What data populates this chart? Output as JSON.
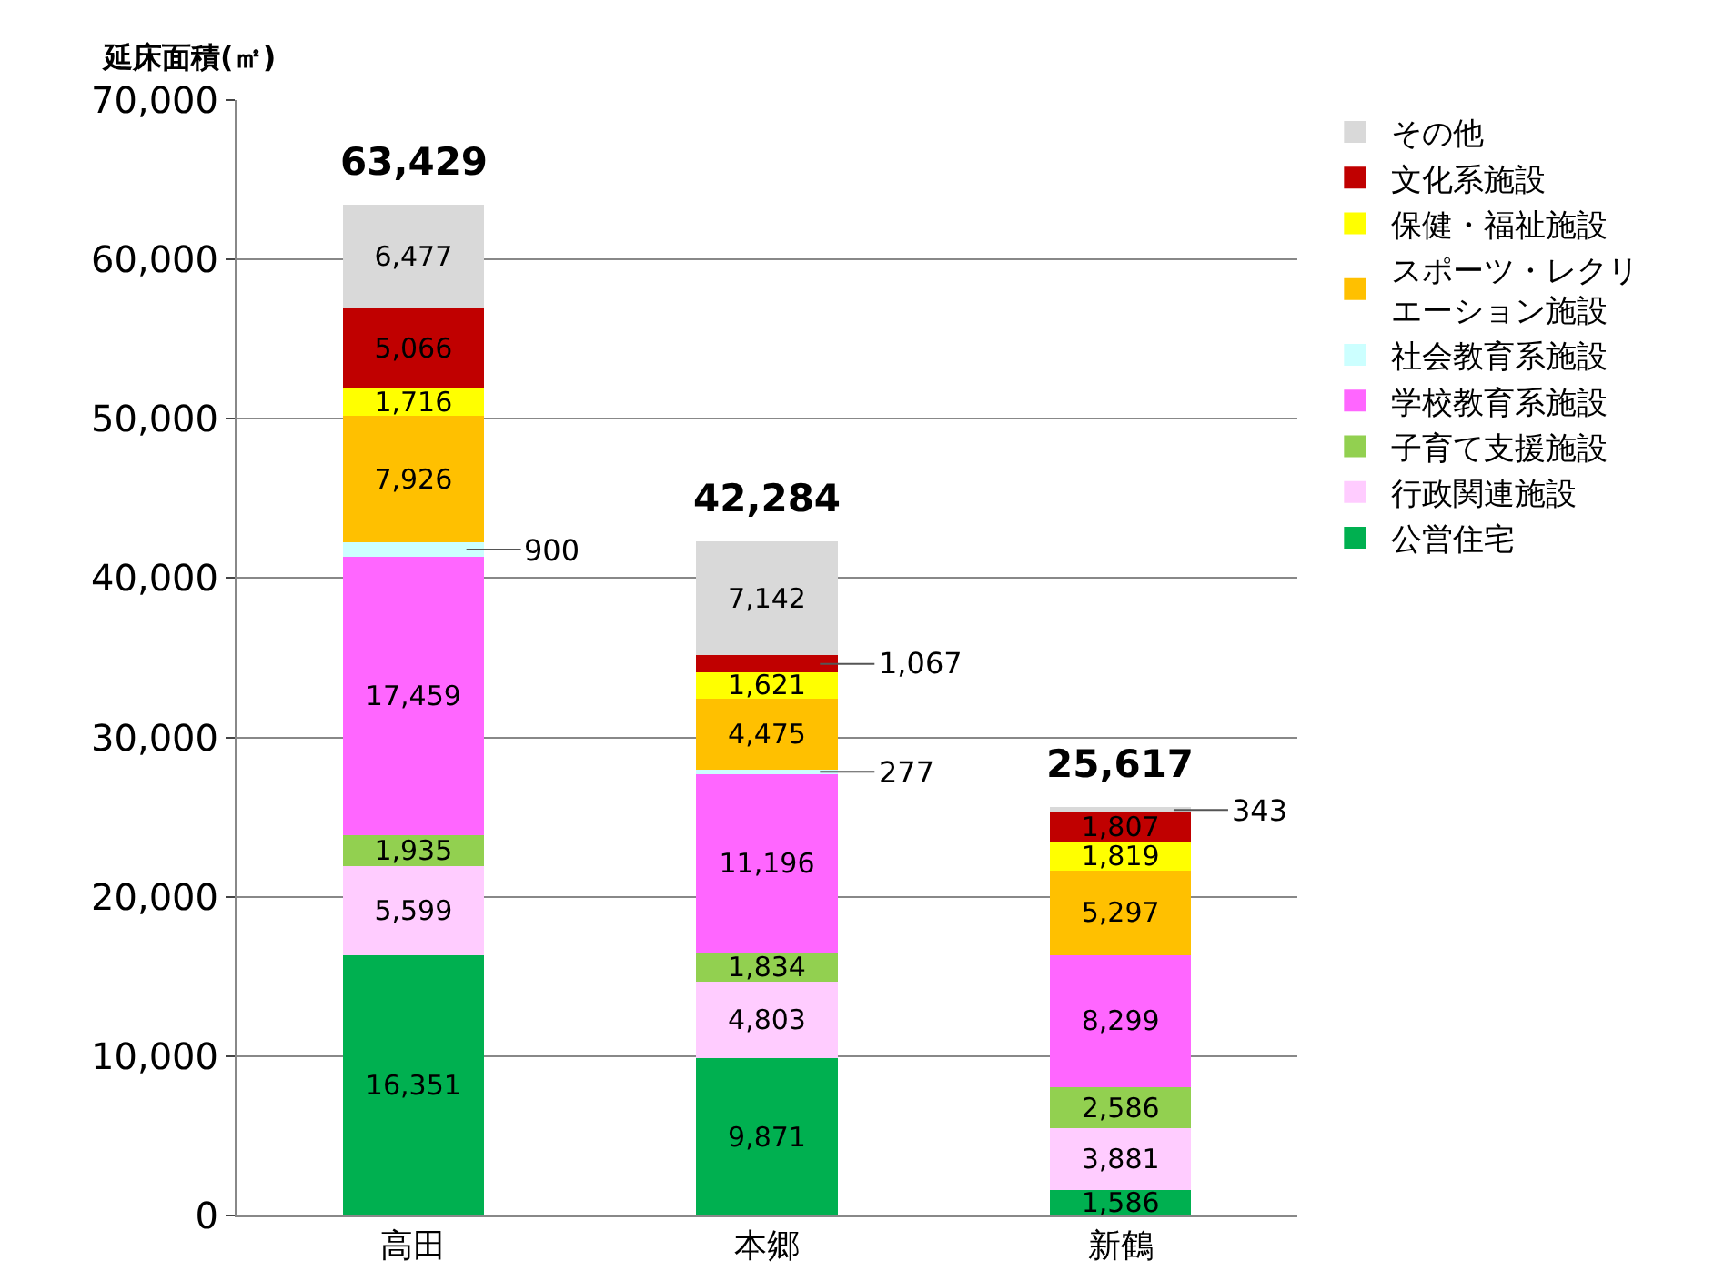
{
  "chart_data": {
    "type": "bar",
    "stacked": true,
    "ylabel": "延床面積(㎡)",
    "categories": [
      "高田",
      "本郷",
      "新鶴"
    ],
    "series": [
      {
        "name": "公営住宅",
        "color": "#00b050",
        "values": [
          16351,
          9871,
          1586
        ],
        "value_labels": [
          "16,351",
          "9,871",
          "1,586"
        ]
      },
      {
        "name": "行政関連施設",
        "color": "#ffccff",
        "values": [
          5599,
          4803,
          3881
        ],
        "value_labels": [
          "5,599",
          "4,803",
          "3,881"
        ]
      },
      {
        "name": "子育て支援施設",
        "color": "#92d050",
        "values": [
          1935,
          1834,
          2586
        ],
        "value_labels": [
          "1,935",
          "1,834",
          "2,586"
        ]
      },
      {
        "name": "学校教育系施設",
        "color": "#ff66ff",
        "values": [
          17459,
          11196,
          8299
        ],
        "value_labels": [
          "17,459",
          "11,196",
          "8,299"
        ]
      },
      {
        "name": "社会教育系施設",
        "color": "#ccffff",
        "values": [
          900,
          277,
          0
        ],
        "value_labels": [
          "900",
          "277",
          null
        ]
      },
      {
        "name": "スポーツ・レクリエーション施設",
        "color": "#ffc000",
        "values": [
          7926,
          4475,
          5297
        ],
        "value_labels": [
          "7,926",
          "4,475",
          "5,297"
        ]
      },
      {
        "name": "保健・福祉施設",
        "color": "#ffff00",
        "values": [
          1716,
          1621,
          1819
        ],
        "value_labels": [
          "1,716",
          "1,621",
          "1,819"
        ]
      },
      {
        "name": "文化系施設",
        "color": "#c00000",
        "values": [
          5066,
          1067,
          1807
        ],
        "value_labels": [
          "5,066",
          "1,067",
          "1,807"
        ]
      },
      {
        "name": "その他",
        "color": "#d9d9d9",
        "values": [
          6477,
          7142,
          343
        ],
        "value_labels": [
          "6,477",
          "7,142",
          "343"
        ]
      }
    ],
    "totals": [
      "63,429",
      "42,284",
      "25,617"
    ],
    "ylim": [
      0,
      70000
    ],
    "yticks": [
      {
        "value": 0,
        "label": "0"
      },
      {
        "value": 10000,
        "label": "10,000"
      },
      {
        "value": 20000,
        "label": "20,000"
      },
      {
        "value": 30000,
        "label": "30,000"
      },
      {
        "value": 40000,
        "label": "40,000"
      },
      {
        "value": 50000,
        "label": "50,000"
      },
      {
        "value": 60000,
        "label": "60,000"
      },
      {
        "value": 70000,
        "label": "70,000"
      }
    ],
    "grid": "y",
    "legend": "right"
  }
}
